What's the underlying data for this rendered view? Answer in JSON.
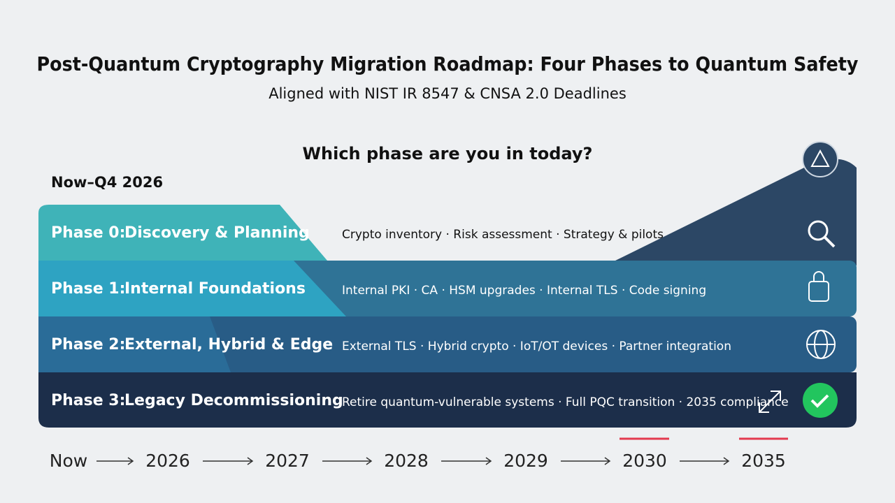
{
  "header": {
    "title": "Post-Quantum Cryptography Migration Roadmap: Four Phases to Quantum Safety",
    "subtitle": "Aligned with NIST IR 8547 & CNSA 2.0 Deadlines"
  },
  "question": "Which phase are you in today?",
  "current_window": "Now–Q4 2026",
  "phases": [
    {
      "label": "Phase 0:",
      "name": "Discovery & Planning",
      "items": "Crypto inventory · Risk assessment · Strategy & pilots"
    },
    {
      "label": "Phase 1:",
      "name": "Internal Foundations",
      "items": "Internal PKI · CA  · HSM upgrades · Internal TLS · Code signing"
    },
    {
      "label": "Phase 2:",
      "name": "External, Hybrid & Edge",
      "items": "External TLS · Hybrid crypto · IoT/OT devices · Partner integration"
    },
    {
      "label": "Phase 3:",
      "name": "Legacy Decommissioning",
      "items": "Retire quantum-vulnerable systems · Full PQC transition · 2035 compliance"
    }
  ],
  "timeline": [
    "Now",
    "2026",
    "2027",
    "2028",
    "2029",
    "2030",
    "2035"
  ]
}
